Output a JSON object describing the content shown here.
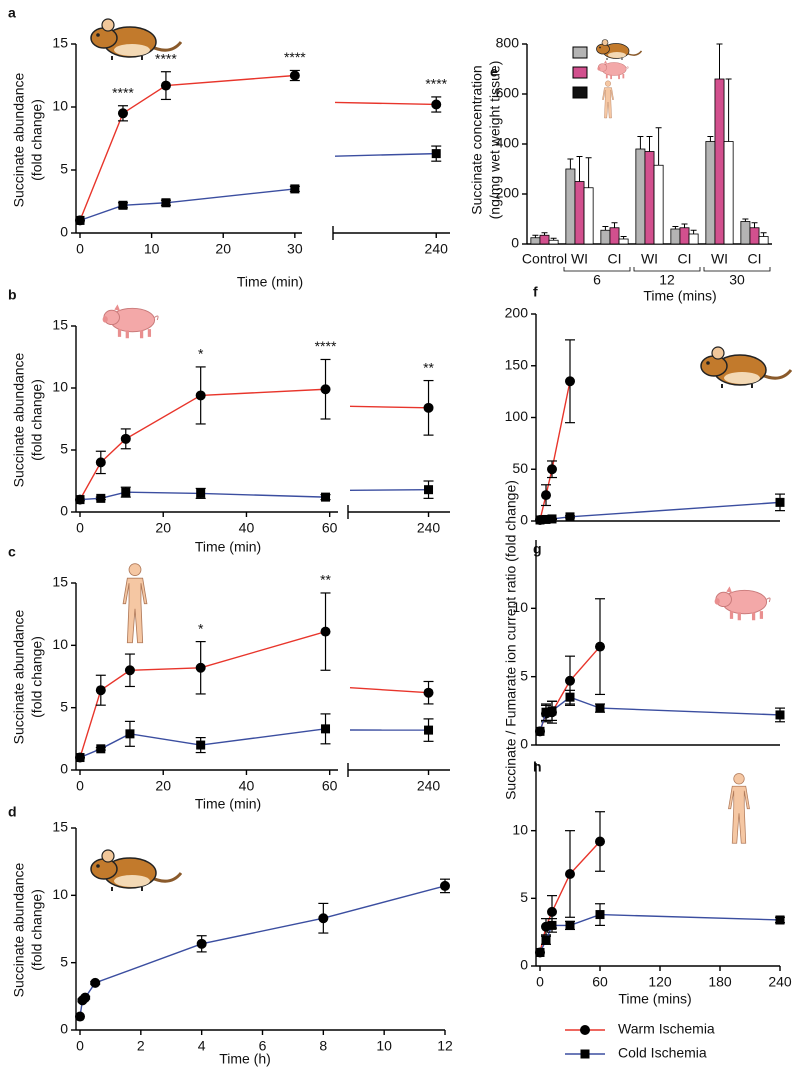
{
  "chart_data": [
    {
      "type": "line",
      "label": "a",
      "ylabel": [
        "Succinate abundance",
        "(fold change)"
      ],
      "xlabel": "Time (min)",
      "x_segments": [
        {
          "xlim": [
            0,
            31
          ],
          "xticks": [
            0,
            10,
            20,
            30
          ]
        },
        {
          "xlim": [
            225,
            242
          ],
          "xticks": [
            240
          ]
        }
      ],
      "ylim": [
        0,
        15
      ],
      "yticks": [
        0,
        5,
        10,
        15
      ],
      "series": [
        {
          "name": "Warm Ischemia",
          "color": "#e8352b",
          "marker": "circle",
          "x": [
            0,
            6,
            12,
            30,
            240
          ],
          "values": [
            1,
            9.5,
            11.7,
            12.5,
            10.2
          ],
          "errors": [
            null,
            0.6,
            1.1,
            0.4,
            0.6
          ],
          "significance": [
            null,
            "****",
            "****",
            "****",
            "****"
          ]
        },
        {
          "name": "Cold Ischemia",
          "color": "#3b4ea0",
          "marker": "square",
          "x": [
            0,
            6,
            12,
            30,
            240
          ],
          "values": [
            1,
            2.2,
            2.4,
            3.5,
            6.3
          ],
          "errors": [
            null,
            0.2,
            0.2,
            0.2,
            0.6
          ]
        }
      ]
    },
    {
      "type": "line",
      "label": "b",
      "ylabel": [
        "Succinate abundance",
        "(fold change)"
      ],
      "xlabel": "Time (min)",
      "x_segments": [
        {
          "xlim": [
            0,
            62
          ],
          "xticks": [
            0,
            20,
            40,
            60
          ]
        },
        {
          "xlim": [
            225,
            244
          ],
          "xticks": [
            240
          ]
        }
      ],
      "ylim": [
        0,
        15
      ],
      "yticks": [
        0,
        5,
        10,
        15
      ],
      "series": [
        {
          "name": "Warm Ischemia",
          "color": "#e8352b",
          "marker": "circle",
          "x": [
            0,
            5,
            11,
            29,
            59,
            240
          ],
          "values": [
            1,
            4,
            5.9,
            9.4,
            9.9,
            8.4
          ],
          "errors": [
            null,
            0.9,
            0.8,
            2.3,
            2.4,
            2.2
          ],
          "significance": [
            null,
            null,
            null,
            "*",
            "****",
            "**"
          ]
        },
        {
          "name": "Cold Ischemia",
          "color": "#3b4ea0",
          "marker": "square",
          "x": [
            0,
            5,
            11,
            29,
            59,
            240
          ],
          "values": [
            1,
            1.1,
            1.6,
            1.5,
            1.2,
            1.8
          ],
          "errors": [
            null,
            0.1,
            0.4,
            0.4,
            0.2,
            0.7
          ]
        }
      ]
    },
    {
      "type": "line",
      "label": "c",
      "ylabel": [
        "Succinate abundance",
        "(fold change)"
      ],
      "xlabel": "Time (min)",
      "x_segments": [
        {
          "xlim": [
            0,
            62
          ],
          "xticks": [
            0,
            20,
            40,
            60
          ]
        },
        {
          "xlim": [
            225,
            244
          ],
          "xticks": [
            240
          ]
        }
      ],
      "ylim": [
        0,
        15
      ],
      "yticks": [
        0,
        5,
        10,
        15
      ],
      "series": [
        {
          "name": "Warm Ischemia",
          "color": "#e8352b",
          "marker": "circle",
          "x": [
            0,
            5,
            12,
            29,
            59,
            240
          ],
          "values": [
            1,
            6.4,
            8,
            8.2,
            11.1,
            6.2
          ],
          "errors": [
            null,
            1.2,
            1.3,
            2.1,
            3.1,
            0.9
          ],
          "significance": [
            null,
            null,
            null,
            "*",
            "**",
            null
          ]
        },
        {
          "name": "Cold Ischemia",
          "color": "#3b4ea0",
          "marker": "square",
          "x": [
            0,
            5,
            12,
            29,
            59,
            240
          ],
          "values": [
            1,
            1.7,
            2.9,
            2,
            3.3,
            3.2
          ],
          "errors": [
            null,
            0.1,
            1,
            0.6,
            1.2,
            0.9
          ]
        }
      ]
    },
    {
      "type": "line",
      "label": "d",
      "ylabel": [
        "Succinate abundance",
        "(fold change)"
      ],
      "xlabel": "Time (h)",
      "xlim": [
        0,
        12
      ],
      "xticks": [
        0,
        2,
        4,
        6,
        8,
        10,
        12
      ],
      "ylim": [
        0,
        15
      ],
      "yticks": [
        0,
        5,
        10,
        15
      ],
      "series": [
        {
          "name": "Cold Ischemia",
          "color": "#3b4ea0",
          "marker": "circle",
          "x": [
            0,
            0.08,
            0.17,
            0.5,
            4,
            8,
            12
          ],
          "values": [
            1,
            2.2,
            2.4,
            3.5,
            6.4,
            8.3,
            10.7
          ],
          "errors": [
            null,
            0.1,
            0.1,
            0.1,
            0.6,
            1.1,
            0.5
          ]
        }
      ]
    },
    {
      "type": "bar",
      "label": "e",
      "ylabel": [
        "Succinate concentration",
        "(ng/mg wet weight  tissue)"
      ],
      "xlabel": "Time (mins)",
      "categories": [
        "Control",
        "WI",
        "CI",
        "WI",
        "CI",
        "WI",
        "CI"
      ],
      "group_labels": [
        "6",
        "12",
        "30"
      ],
      "ylim": [
        0,
        800
      ],
      "yticks": [
        0,
        200,
        400,
        600,
        800
      ],
      "series": [
        {
          "color": "#b4b4b4",
          "values": [
            25,
            300,
            55,
            380,
            60,
            410,
            90
          ],
          "errors": [
            10,
            40,
            15,
            50,
            10,
            20,
            10
          ]
        },
        {
          "color": "#d2508e",
          "values": [
            35,
            250,
            65,
            370,
            65,
            660,
            65
          ],
          "errors": [
            10,
            100,
            20,
            60,
            15,
            140,
            20
          ]
        },
        {
          "color": "#ffffff",
          "values": [
            15,
            225,
            20,
            315,
            40,
            410,
            30
          ],
          "errors": [
            8,
            120,
            10,
            150,
            15,
            250,
            15
          ]
        }
      ]
    },
    {
      "type": "line",
      "label": "f",
      "ylabel": [
        "Succinate / Fumarate ion current ratio (fold change)"
      ],
      "xlim": [
        0,
        240
      ],
      "ylim": [
        0,
        200
      ],
      "yticks": [
        0,
        50,
        100,
        150,
        200
      ],
      "series": [
        {
          "name": "Warm Ischemia",
          "color": "#e8352b",
          "marker": "circle",
          "x": [
            0,
            6,
            12,
            30
          ],
          "values": [
            1,
            25,
            50,
            135
          ],
          "errors": [
            null,
            10,
            8,
            40
          ]
        },
        {
          "name": "Cold Ischemia",
          "color": "#3b4ea0",
          "marker": "square",
          "x": [
            0,
            6,
            12,
            30,
            240
          ],
          "values": [
            1,
            1.5,
            2,
            4,
            18
          ],
          "errors": [
            null,
            0.5,
            0.5,
            1,
            8
          ]
        }
      ]
    },
    {
      "type": "line",
      "label": "g",
      "xlim": [
        0,
        240
      ],
      "ylim": [
        0,
        15
      ],
      "yticks": [
        0,
        5,
        10
      ],
      "series": [
        {
          "name": "Warm Ischemia",
          "color": "#e8352b",
          "marker": "circle",
          "x": [
            0,
            6,
            12,
            30,
            60
          ],
          "values": [
            1,
            2.3,
            2.4,
            4.7,
            7.2
          ],
          "errors": [
            null,
            0.6,
            0.8,
            1.8,
            3.5
          ]
        },
        {
          "name": "Cold Ischemia",
          "color": "#3b4ea0",
          "marker": "square",
          "x": [
            0,
            6,
            12,
            30,
            60,
            240
          ],
          "values": [
            1,
            2.4,
            2.5,
            3.5,
            2.7,
            2.2
          ],
          "errors": [
            null,
            0.6,
            0.7,
            0.5,
            0.3,
            0.5
          ]
        }
      ]
    },
    {
      "type": "line",
      "label": "h",
      "xlabel": "Time (mins)",
      "xlim": [
        0,
        240
      ],
      "xticks": [
        0,
        60,
        120,
        180,
        240
      ],
      "ylim": [
        0,
        15
      ],
      "yticks": [
        0,
        5,
        10
      ],
      "legend": "bottom-right",
      "series": [
        {
          "name": "Warm Ischemia",
          "color": "#e8352b",
          "marker": "circle",
          "x": [
            0,
            6,
            12,
            30,
            60
          ],
          "values": [
            1,
            2.9,
            4,
            6.8,
            9.2
          ],
          "errors": [
            null,
            0.6,
            1.2,
            3.2,
            2.2
          ]
        },
        {
          "name": "Cold Ischemia",
          "color": "#3b4ea0",
          "marker": "square",
          "x": [
            0,
            6,
            12,
            30,
            60,
            240
          ],
          "values": [
            1,
            1.9,
            3,
            3,
            3.8,
            3.4
          ],
          "errors": [
            null,
            0.3,
            0.5,
            0.3,
            0.8,
            0.2
          ]
        }
      ]
    }
  ]
}
